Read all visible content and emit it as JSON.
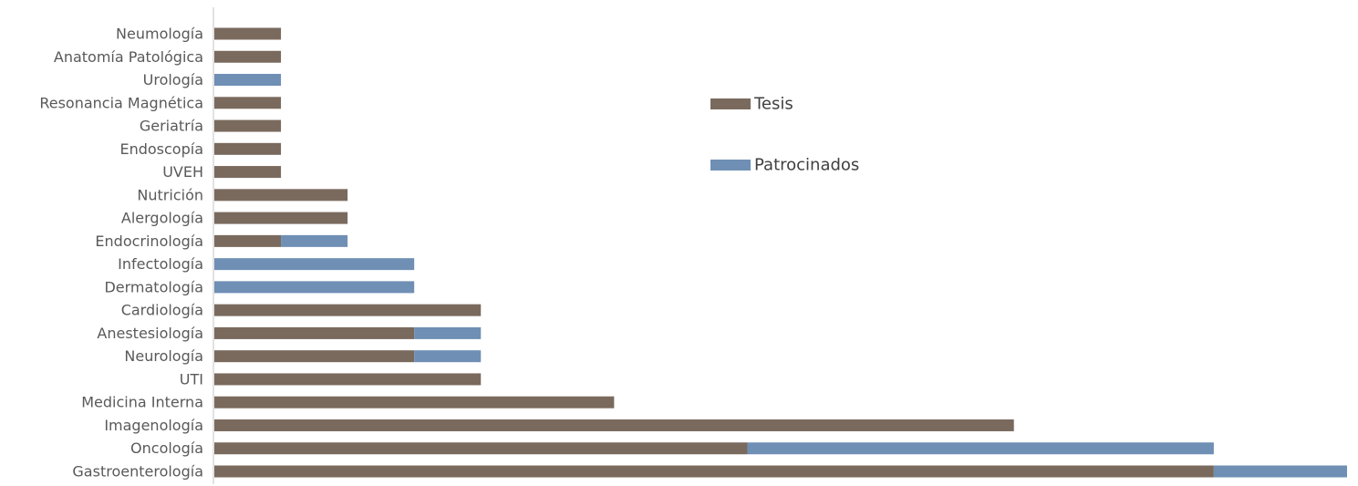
{
  "chart_data": {
    "type": "bar",
    "orientation": "horizontal",
    "stacked": true,
    "categories": [
      "Neumología",
      "Anatomía Patológica",
      "Urología",
      "Resonancia Magnética",
      "Geriatría",
      "Endoscopía",
      "UVEH",
      "Nutrición",
      "Alergología",
      "Endocrinología",
      "Infectología",
      "Dermatología",
      "Cardiología",
      "Anestesiología",
      "Neurología",
      "UTI",
      "Medicina Interna",
      "Imagenología",
      "Oncología",
      "Gastroenterología"
    ],
    "series": [
      {
        "name": "Tesis",
        "color": "#7a6a5e",
        "values": [
          1,
          1,
          0,
          1,
          1,
          1,
          1,
          2,
          2,
          1,
          0,
          0,
          4,
          3,
          3,
          4,
          6,
          12,
          8,
          15
        ]
      },
      {
        "name": "Patrocinados",
        "color": "#6f8fb5",
        "values": [
          0,
          0,
          1,
          0,
          0,
          0,
          0,
          0,
          0,
          1,
          3,
          3,
          0,
          1,
          1,
          0,
          0,
          0,
          7,
          2
        ]
      }
    ],
    "xlim": [
      0,
      17
    ],
    "grid": false,
    "legend": "center-right"
  }
}
